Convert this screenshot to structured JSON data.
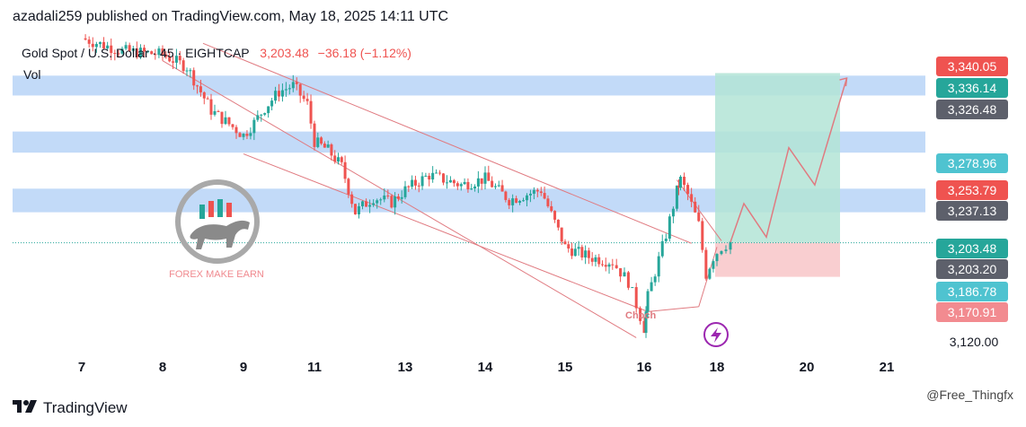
{
  "header": {
    "text": "azadali259 published on TradingView.com, May 18, 2025 14:11 UTC"
  },
  "legend": {
    "symbol": "Gold Spot / U.S. Dollar · 45 · EIGHTCAP",
    "price": "3,203.48",
    "change": "−36.18 (−1.12%)",
    "vol": "Vol"
  },
  "brand": {
    "name": "FOREX MAKE EARN"
  },
  "annotations": {
    "choch": "Choch"
  },
  "footer": {
    "logo_text": "TradingView",
    "credit": "@Free_Thingfx"
  },
  "colors": {
    "up": "#26a69a",
    "down": "#ef5350",
    "zone": "#bbd6f7",
    "tp": "#b3e4d6",
    "sl": "#f8c9cb",
    "channel": "#e07a80",
    "price_tag_red": "#ef5350",
    "price_tag_green": "#26a69a",
    "price_tag_gray": "#5d606b",
    "price_tag_teal": "#4fc3d0",
    "price_tag_pink": "#f28b90"
  },
  "chart_data": {
    "type": "candlestick",
    "instrument": "Gold Spot / U.S. Dollar",
    "timeframe": "45",
    "x_ticks": [
      "7",
      "8",
      "9",
      "11",
      "13",
      "14",
      "15",
      "16",
      "18",
      "20",
      "21"
    ],
    "y_ticks": [
      "3,120.00"
    ],
    "ylim": [
      3110,
      3370
    ],
    "price_tags": [
      {
        "label": "3,340.05",
        "value": 3340.05,
        "color": "red"
      },
      {
        "label": "3,336.14",
        "value": 3336.14,
        "color": "green"
      },
      {
        "label": "3,326.48",
        "value": 3326.48,
        "color": "gray"
      },
      {
        "label": "3,278.96",
        "value": 3278.96,
        "color": "teal"
      },
      {
        "label": "3,253.79",
        "value": 3253.79,
        "color": "red"
      },
      {
        "label": "3,237.13",
        "value": 3237.13,
        "color": "gray"
      },
      {
        "label": "3,203.48",
        "value": 3203.48,
        "color": "green"
      },
      {
        "label": "3,203.20",
        "value": 3203.2,
        "color": "gray"
      },
      {
        "label": "3,186.78",
        "value": 3186.78,
        "color": "teal"
      },
      {
        "label": "3,170.91",
        "value": 3170.91,
        "color": "pink"
      }
    ],
    "zones": [
      {
        "from": 3322,
        "to": 3338
      },
      {
        "from": 3276,
        "to": 3293
      },
      {
        "from": 3228,
        "to": 3247
      }
    ],
    "position": {
      "entry": 3203.48,
      "take_profit": 3340.05,
      "stop_loss": 3176
    },
    "price_path": [
      [
        7.0,
        3368
      ],
      [
        7.5,
        3358
      ],
      [
        8.0,
        3355
      ],
      [
        8.3,
        3345
      ],
      [
        8.6,
        3310
      ],
      [
        9.0,
        3290
      ],
      [
        9.3,
        3300
      ],
      [
        9.6,
        3312
      ],
      [
        10.0,
        3325
      ],
      [
        10.4,
        3330
      ],
      [
        10.8,
        3315
      ],
      [
        11.0,
        3285
      ],
      [
        11.3,
        3278
      ],
      [
        11.6,
        3265
      ],
      [
        11.9,
        3228
      ],
      [
        12.3,
        3240
      ],
      [
        12.7,
        3236
      ],
      [
        13.0,
        3246
      ],
      [
        13.3,
        3258
      ],
      [
        13.7,
        3250
      ],
      [
        14.0,
        3255
      ],
      [
        14.3,
        3238
      ],
      [
        14.7,
        3246
      ],
      [
        15.0,
        3200
      ],
      [
        15.3,
        3192
      ],
      [
        15.6,
        3188
      ],
      [
        15.8,
        3172
      ],
      [
        16.0,
        3135
      ],
      [
        16.1,
        3160
      ],
      [
        16.3,
        3180
      ],
      [
        16.6,
        3210
      ],
      [
        16.9,
        3245
      ],
      [
        17.0,
        3254
      ],
      [
        17.2,
        3242
      ],
      [
        17.5,
        3218
      ],
      [
        17.7,
        3178
      ],
      [
        17.9,
        3192
      ],
      [
        18.1,
        3200
      ],
      [
        18.3,
        3204
      ]
    ],
    "projection": [
      [
        18.3,
        3204
      ],
      [
        18.6,
        3235
      ],
      [
        19.1,
        3208
      ],
      [
        19.6,
        3280
      ],
      [
        20.1,
        3250
      ],
      [
        20.5,
        3336
      ]
    ]
  }
}
